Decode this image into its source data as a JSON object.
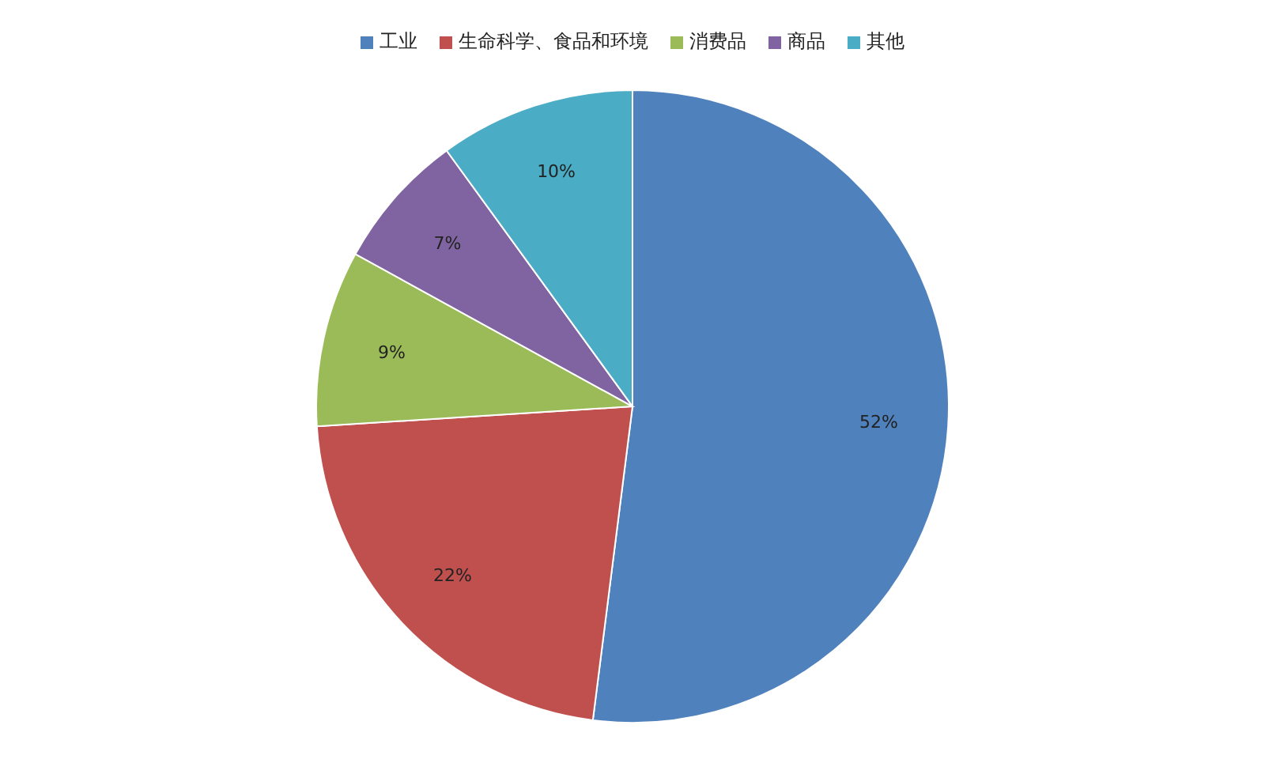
{
  "chart_data": {
    "type": "pie",
    "categories": [
      "工业",
      "生命科学、食品和环境",
      "消费品",
      "商品",
      "其他"
    ],
    "values": [
      52,
      22,
      9,
      7,
      10
    ],
    "colors": [
      "#4f81bd",
      "#c0504d",
      "#9bbb59",
      "#8064a2",
      "#4bacc6"
    ],
    "value_labels": [
      "52%",
      "22%",
      "9%",
      "7%",
      "10%"
    ],
    "legend": "top"
  }
}
